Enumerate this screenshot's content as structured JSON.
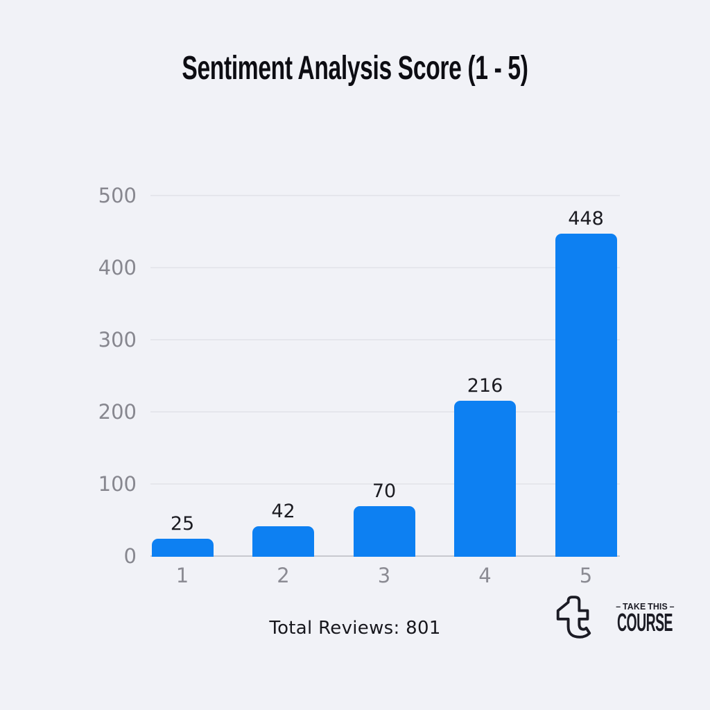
{
  "chart_data": {
    "type": "bar",
    "title": "Sentiment Analysis Score (1 - 5)",
    "categories": [
      "1",
      "2",
      "3",
      "4",
      "5"
    ],
    "values": [
      25,
      42,
      70,
      216,
      448
    ],
    "xlabel": "",
    "ylabel": "",
    "ylim": [
      0,
      500
    ],
    "yticks": [
      0,
      100,
      200,
      300,
      400,
      500
    ],
    "bar_color": "#0d80f2",
    "grid": true,
    "legend": false
  },
  "footer": {
    "total_reviews": "Total Reviews: 801"
  },
  "logo": {
    "line1": "– TAKE THIS –",
    "line2": "COURSE"
  },
  "colors": {
    "background": "#f1f2f7",
    "accent_bar": "#0d80f2",
    "gridline": "#e5e6ec",
    "axis_line": "#c8c9cf",
    "tick_label": "#87878f",
    "value_label": "#1b1b21",
    "title_text": "#0d0d13",
    "logo_ink": "#1b1b24"
  }
}
